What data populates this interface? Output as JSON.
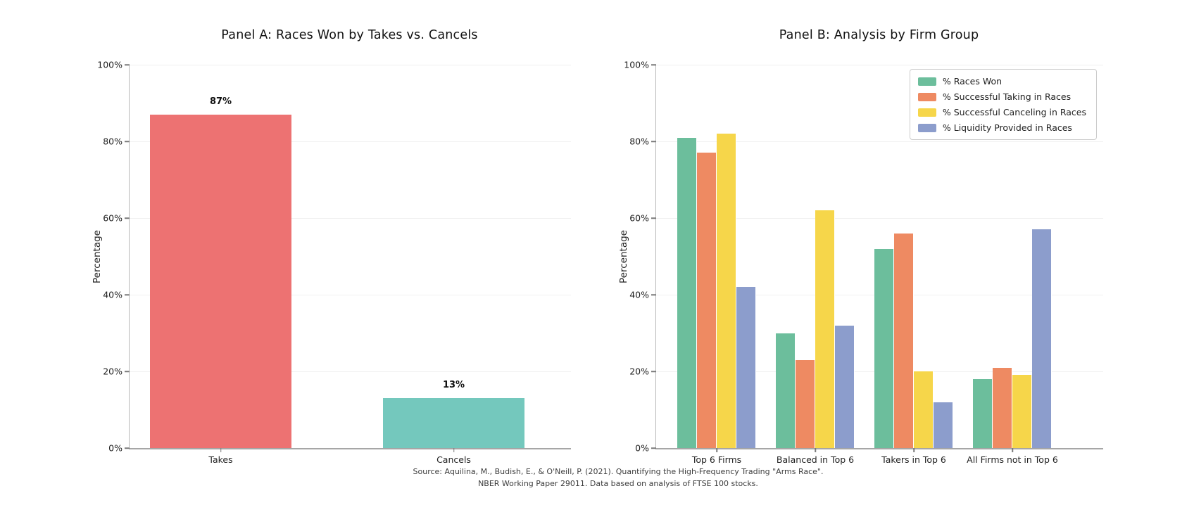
{
  "figure": {
    "source_line1": "Source: Aquilina, M., Budish, E., & O'Neill, P. (2021). Quantifying the High-Frequency Trading \"Arms Race\".",
    "source_line2": "NBER Working Paper 29011. Data based on analysis of FTSE 100 stocks."
  },
  "chart_data": [
    {
      "type": "bar",
      "panel": "A",
      "title": "Panel A: Races Won by Takes vs. Cancels",
      "categories": [
        "Takes",
        "Cancels"
      ],
      "values": [
        87,
        13
      ],
      "bar_labels": [
        "87%",
        "13%"
      ],
      "bar_colors": [
        "#ED7272",
        "#74C8BD"
      ],
      "xlabel": "",
      "ylabel": "Percentage",
      "ylim": [
        0,
        100
      ],
      "ytick_labels": [
        "0%",
        "20%",
        "40%",
        "60%",
        "80%",
        "100%"
      ],
      "grid": "horizontal, light"
    },
    {
      "type": "bar",
      "panel": "B",
      "title": "Panel B: Analysis by Firm Group",
      "categories": [
        "Top 6 Firms",
        "Balanced in Top 6",
        "Takers in Top 6",
        "All Firms not in Top 6"
      ],
      "series": [
        {
          "name": "% Races Won",
          "color": "#6CBE9C",
          "values": [
            81,
            30,
            52,
            18
          ]
        },
        {
          "name": "% Successful Taking in Races",
          "color": "#EE8A62",
          "values": [
            77,
            23,
            56,
            21
          ]
        },
        {
          "name": "% Successful Canceling in Races",
          "color": "#F6D64A",
          "values": [
            82,
            62,
            20,
            19
          ]
        },
        {
          "name": "% Liquidity Provided in Races",
          "color": "#8C9DCC",
          "values": [
            42,
            32,
            12,
            57
          ]
        }
      ],
      "xlabel": "",
      "ylabel": "Percentage",
      "ylim": [
        0,
        100
      ],
      "ytick_labels": [
        "0%",
        "20%",
        "40%",
        "60%",
        "80%",
        "100%"
      ],
      "grid": "horizontal, light",
      "legend_position": "upper right"
    }
  ]
}
